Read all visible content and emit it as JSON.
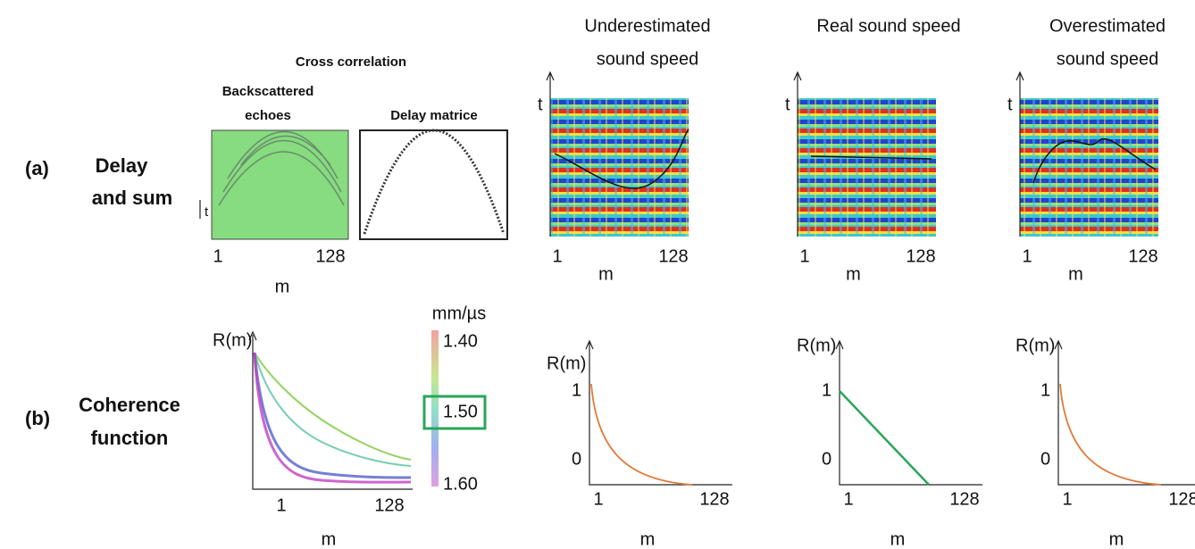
{
  "columns": [
    {
      "title_line1": "Underestimated",
      "title_line2": "sound speed",
      "color": "#e07b39"
    },
    {
      "title_line1": "Real sound speed",
      "color": "#2aa558"
    },
    {
      "title_line1": "Overestimated",
      "title_line2": "sound speed",
      "color": "#e07b39"
    }
  ],
  "row_a": {
    "label": "(a)",
    "title_line1": "Delay",
    "title_line2": "and sum",
    "cross_correlation": "Cross correlation",
    "echoes": {
      "title_line1": "Backscattered",
      "title_line2": "echoes",
      "t_axis": "t",
      "x_start": "1",
      "x_end": "128",
      "x_label": "m"
    },
    "delay_matrix": {
      "title": "Delay matrice"
    },
    "panels": [
      {
        "t_axis": "t",
        "x_start": "1",
        "x_end": "128",
        "x_label": "m"
      },
      {
        "t_axis": "t",
        "x_start": "1",
        "x_end": "128",
        "x_label": "m"
      },
      {
        "t_axis": "t",
        "x_start": "1",
        "x_end": "128",
        "x_label": "m"
      }
    ]
  },
  "row_b": {
    "label": "(b)",
    "title_line1": "Coherence",
    "title_line2": "function",
    "coherence": {
      "y_label": "R(m)",
      "x_start": "1",
      "x_end": "128",
      "x_label": "m",
      "unit": "mm/µs",
      "scale_top": "1.40",
      "scale_mid": "1.50",
      "scale_bottom": "1.60"
    },
    "panels": [
      {
        "y_label": "R(m)",
        "y_top": "1",
        "y_zero": "0",
        "x_start": "1",
        "x_end": "128",
        "x_label": "m"
      },
      {
        "y_label": "R(m)",
        "y_top": "1",
        "y_zero": "0",
        "x_start": "1",
        "x_end": "128",
        "x_label": "m"
      },
      {
        "y_label": "R(m)",
        "y_top": "1",
        "y_zero": "0",
        "x_start": "1",
        "x_end": "128",
        "x_label": "m"
      }
    ]
  }
}
